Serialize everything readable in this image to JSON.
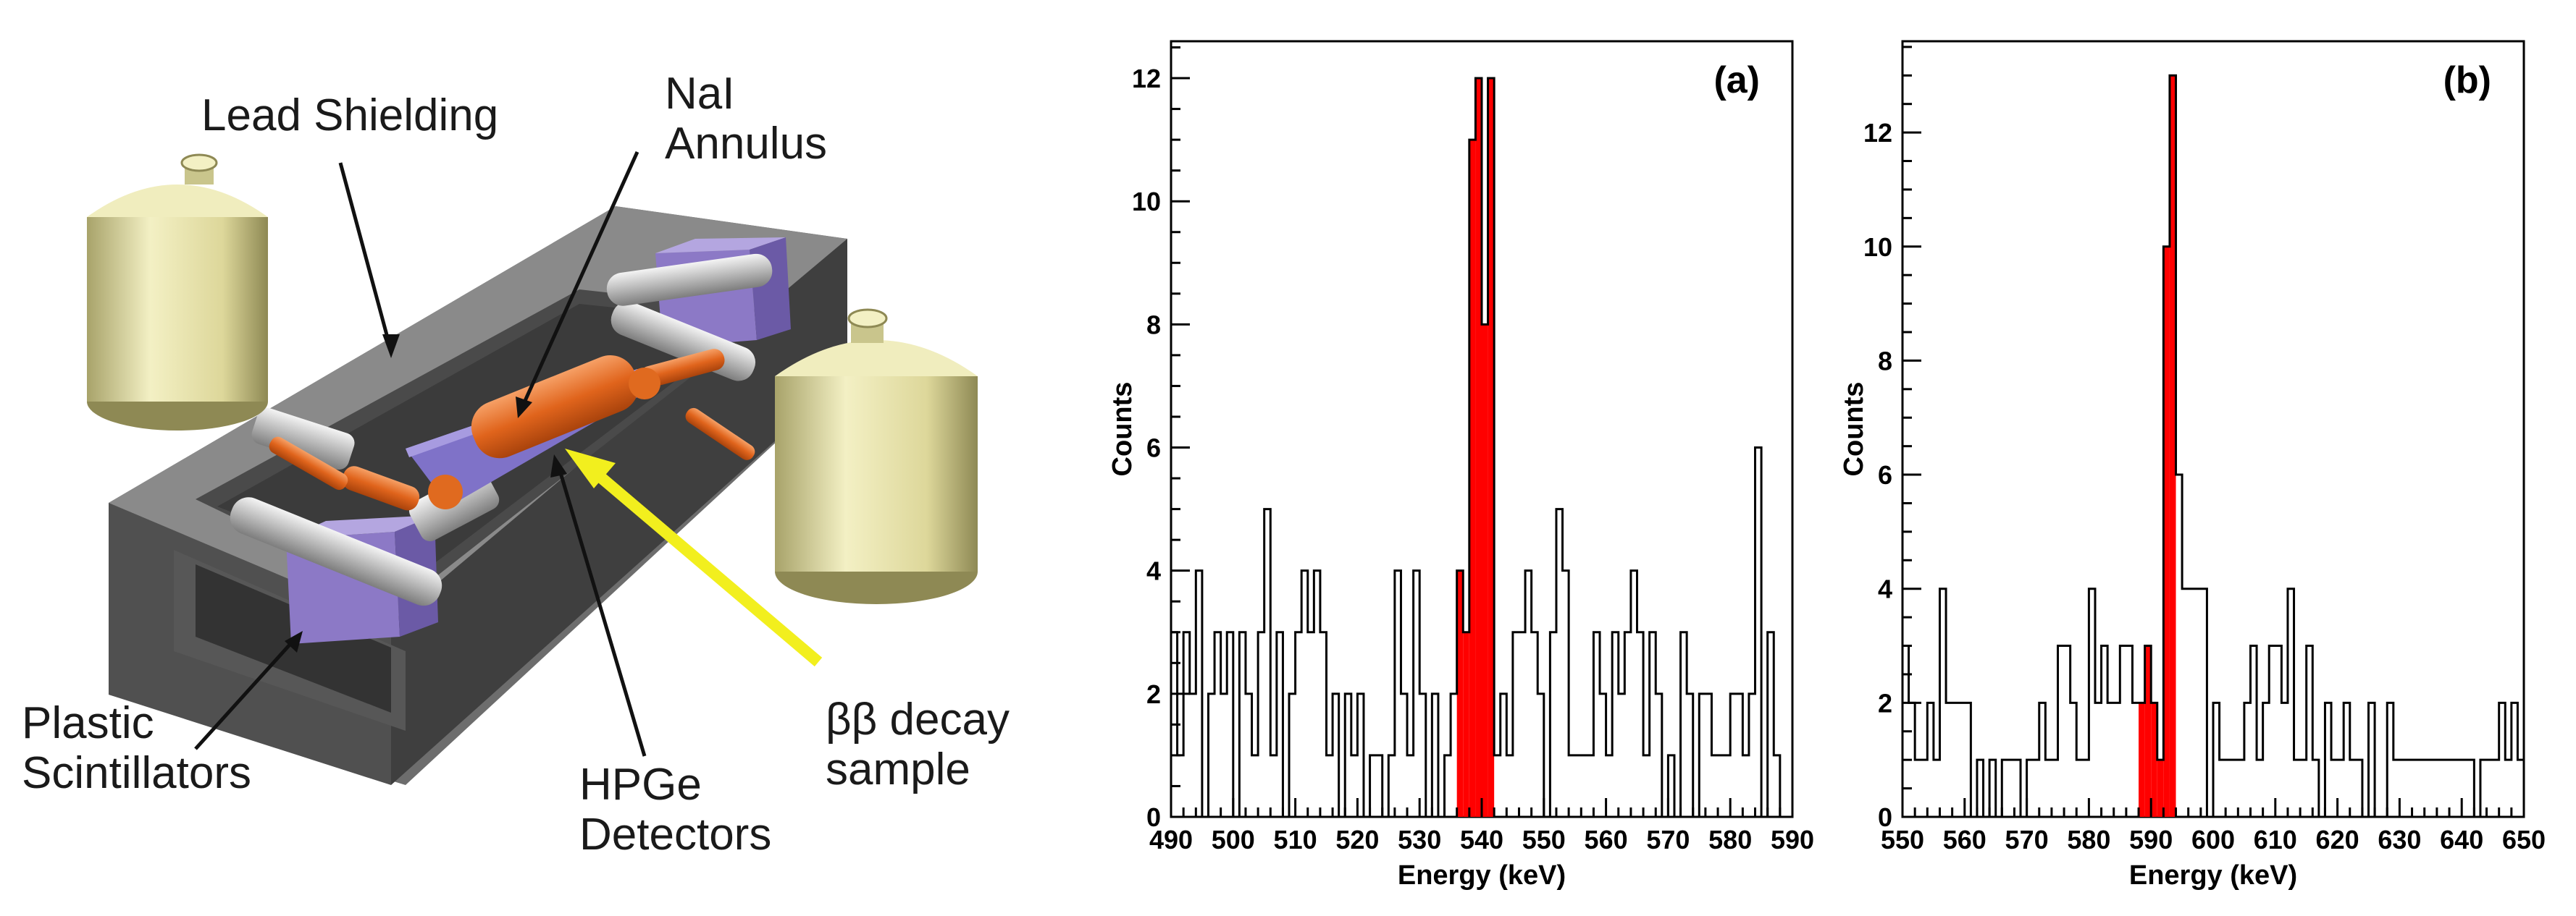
{
  "illustration": {
    "labels": {
      "lead_shielding": "Lead Shielding",
      "nai_line1": "NaI",
      "nai_line2": "Annulus",
      "plastic_line1": "Plastic",
      "plastic_line2": "Scintillators",
      "hpge_line1": "HPGe",
      "hpge_line2": "Detectors",
      "bb_line1": "ββ decay",
      "bb_line2": "sample"
    },
    "colors": {
      "lead": "#5a5a5a",
      "dewar": "#e6e2a0",
      "scintillator": "#8b78c4",
      "hpge": "#e06a1f",
      "arrow": "#f2ef1e"
    }
  },
  "chart_data": [
    {
      "type": "bar",
      "panel_label": "(a)",
      "xlabel": "Energy (keV)",
      "ylabel": "Counts",
      "xlim": [
        490,
        590
      ],
      "ylim": [
        0,
        12.6
      ],
      "xticks": [
        490,
        500,
        510,
        520,
        530,
        540,
        550,
        560,
        570,
        580,
        590
      ],
      "yticks": [
        0,
        2,
        4,
        6,
        8,
        10,
        12
      ],
      "bin_width": 1,
      "bin_start": 490,
      "highlight": [
        536,
        542
      ],
      "highlight_color": "#ff0000",
      "values": [
        3,
        1,
        3,
        2,
        4,
        0,
        2,
        3,
        2,
        3,
        0,
        3,
        2,
        1,
        3,
        5,
        1,
        3,
        0,
        2,
        3,
        4,
        3,
        4,
        3,
        1,
        2,
        0,
        2,
        1,
        2,
        0,
        1,
        1,
        0,
        1,
        4,
        2,
        1,
        4,
        2,
        0,
        2,
        0,
        1,
        2,
        4,
        3,
        11,
        12,
        8,
        12,
        1,
        2,
        1,
        3,
        3,
        4,
        3,
        2,
        0,
        3,
        5,
        4,
        1,
        1,
        1,
        1,
        3,
        2,
        1,
        3,
        2,
        3,
        4,
        3,
        1,
        3,
        2,
        0,
        1,
        0,
        3,
        2,
        0,
        2,
        2,
        1,
        1,
        1,
        2,
        2,
        1,
        2,
        6,
        0,
        3,
        1,
        0,
        0,
        2
      ]
    },
    {
      "type": "bar",
      "panel_label": "(b)",
      "xlabel": "Energy (keV)",
      "ylabel": "Counts",
      "xlim": [
        550,
        650
      ],
      "ylim": [
        0,
        13.6
      ],
      "xticks": [
        550,
        560,
        570,
        580,
        590,
        600,
        610,
        620,
        630,
        640,
        650
      ],
      "yticks": [
        0,
        2,
        4,
        6,
        8,
        10,
        12
      ],
      "bin_width": 1,
      "bin_start": 550,
      "highlight": [
        588,
        594
      ],
      "highlight_color": "#ff0000",
      "values": [
        3,
        2,
        1,
        1,
        2,
        1,
        4,
        2,
        2,
        2,
        2,
        0,
        1,
        0,
        1,
        0,
        1,
        1,
        1,
        0,
        1,
        1,
        2,
        1,
        1,
        3,
        3,
        2,
        1,
        1,
        4,
        2,
        3,
        2,
        2,
        3,
        3,
        2,
        2,
        3,
        2,
        1,
        10,
        13,
        6,
        4,
        4,
        4,
        4,
        0,
        2,
        1,
        1,
        1,
        1,
        2,
        3,
        1,
        2,
        3,
        3,
        2,
        4,
        1,
        1,
        3,
        1,
        0,
        2,
        1,
        1,
        2,
        1,
        1,
        0,
        2,
        0,
        0,
        2,
        1,
        1,
        1,
        1,
        1,
        1,
        1,
        1,
        1,
        1,
        1,
        1,
        1,
        0,
        1,
        1,
        1,
        2,
        1,
        2,
        1,
        1
      ]
    }
  ]
}
